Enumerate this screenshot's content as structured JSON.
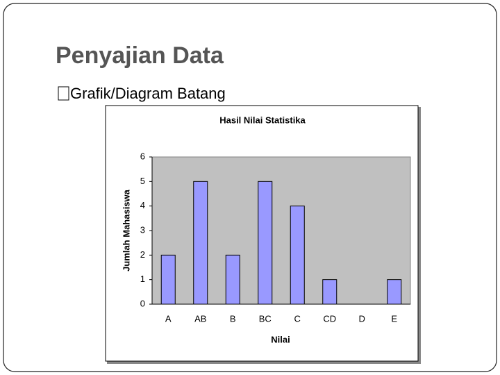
{
  "slide": {
    "title": "Penyajian Data",
    "bullet": "Grafik/Diagram Batang"
  },
  "chart_data": {
    "type": "bar",
    "title": "Hasil Nilai Statistika",
    "x_label": "Nilai",
    "y_label": "Jumlah Mahasiswa",
    "categories": [
      "A",
      "AB",
      "B",
      "BC",
      "C",
      "CD",
      "D",
      "E"
    ],
    "values": [
      2,
      5,
      2,
      5,
      4,
      1,
      0,
      1
    ],
    "color": "#9999ff",
    "plot_background": "#c0c0c0",
    "ylim": [
      0,
      6
    ],
    "yticks": [
      0,
      1,
      2,
      3,
      4,
      5,
      6
    ],
    "grid": false
  }
}
